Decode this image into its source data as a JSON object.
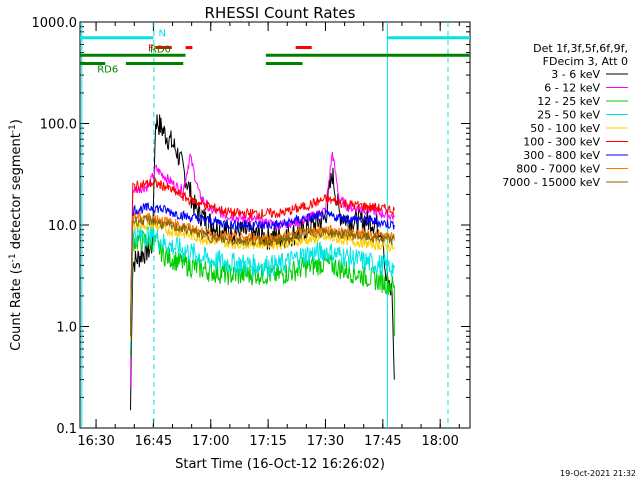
{
  "chart_data": {
    "type": "line",
    "title": "RHESSI Count Rates",
    "xlabel": "Start Time (16-Oct-12 16:26:02)",
    "ylabel_main": "Count Rate (s",
    "ylabel_sup1": "-1",
    "ylabel_mid": " detector segment",
    "ylabel_sup2": "-1",
    "ylabel_end": ")",
    "yscale": "log",
    "ylim": [
      0.1,
      1000
    ],
    "xlim_minutes": [
      16.43,
      18.13
    ],
    "x_ticks": [
      {
        "label": "16:30",
        "t": 16.5
      },
      {
        "label": "16:45",
        "t": 16.75
      },
      {
        "label": "17:00",
        "t": 17.0
      },
      {
        "label": "17:15",
        "t": 17.25
      },
      {
        "label": "17:30",
        "t": 17.5
      },
      {
        "label": "17:45",
        "t": 17.75
      },
      {
        "label": "18:00",
        "t": 18.0
      }
    ],
    "y_ticks": [
      {
        "label": "0.1",
        "v": 0.1
      },
      {
        "label": "1.0",
        "v": 1.0
      },
      {
        "label": "10.0",
        "v": 10.0
      },
      {
        "label": "100.0",
        "v": 100.0
      },
      {
        "label": "1000.0",
        "v": 1000.0
      }
    ],
    "legend_header": [
      "Det 1f,3f,5f,6f,9f,",
      "FDecim 3, Att 0"
    ],
    "series": [
      {
        "name": "3 - 6 keV",
        "color": "#000000",
        "points": [
          [
            16.65,
            0.15
          ],
          [
            16.66,
            4.2
          ],
          [
            16.7,
            5.2
          ],
          [
            16.745,
            6
          ],
          [
            16.76,
            110
          ],
          [
            16.8,
            80
          ],
          [
            16.85,
            55
          ],
          [
            16.88,
            35
          ],
          [
            16.9,
            25
          ],
          [
            16.93,
            15
          ],
          [
            16.98,
            11
          ],
          [
            17.05,
            9
          ],
          [
            17.15,
            8.5
          ],
          [
            17.25,
            7.5
          ],
          [
            17.35,
            8
          ],
          [
            17.45,
            10
          ],
          [
            17.5,
            12
          ],
          [
            17.53,
            32
          ],
          [
            17.56,
            13
          ],
          [
            17.6,
            11
          ],
          [
            17.7,
            11
          ],
          [
            17.75,
            9
          ],
          [
            17.76,
            3
          ],
          [
            17.79,
            2.2
          ],
          [
            17.8,
            0.3
          ]
        ]
      },
      {
        "name": "6 - 12 keV",
        "color": "#ff00ff",
        "points": [
          [
            16.65,
            0.25
          ],
          [
            16.66,
            22
          ],
          [
            16.73,
            24
          ],
          [
            16.76,
            36
          ],
          [
            16.8,
            30
          ],
          [
            16.85,
            24
          ],
          [
            16.88,
            22
          ],
          [
            16.91,
            48
          ],
          [
            16.95,
            20
          ],
          [
            17.0,
            14
          ],
          [
            17.1,
            12
          ],
          [
            17.2,
            11
          ],
          [
            17.3,
            10
          ],
          [
            17.4,
            11
          ],
          [
            17.5,
            14
          ],
          [
            17.53,
            52
          ],
          [
            17.56,
            18
          ],
          [
            17.6,
            15
          ],
          [
            17.7,
            14
          ],
          [
            17.8,
            12
          ]
        ]
      },
      {
        "name": "12 - 25 keV",
        "color": "#00cc00",
        "points": [
          [
            16.65,
            0.5
          ],
          [
            16.66,
            7
          ],
          [
            16.75,
            7
          ],
          [
            16.8,
            5
          ],
          [
            16.9,
            4
          ],
          [
            17.0,
            3.5
          ],
          [
            17.1,
            3.2
          ],
          [
            17.2,
            3.3
          ],
          [
            17.3,
            3.2
          ],
          [
            17.4,
            3.8
          ],
          [
            17.5,
            4.2
          ],
          [
            17.6,
            3.5
          ],
          [
            17.7,
            3
          ],
          [
            17.8,
            2.5
          ],
          [
            17.8,
            0.8
          ]
        ]
      },
      {
        "name": "25 - 50 keV",
        "color": "#00e5e5",
        "points": [
          [
            16.65,
            0.6
          ],
          [
            16.66,
            8
          ],
          [
            16.75,
            8
          ],
          [
            16.8,
            6.5
          ],
          [
            16.9,
            5.5
          ],
          [
            17.0,
            4.5
          ],
          [
            17.1,
            4.2
          ],
          [
            17.2,
            4
          ],
          [
            17.3,
            4
          ],
          [
            17.4,
            5
          ],
          [
            17.5,
            5.5
          ],
          [
            17.6,
            4.8
          ],
          [
            17.7,
            4.2
          ],
          [
            17.8,
            3.8
          ]
        ]
      },
      {
        "name": "50 - 100 keV",
        "color": "#ffcc00",
        "points": [
          [
            16.65,
            0.7
          ],
          [
            16.66,
            10
          ],
          [
            16.75,
            10
          ],
          [
            16.8,
            9
          ],
          [
            16.9,
            8
          ],
          [
            17.0,
            7
          ],
          [
            17.1,
            6.5
          ],
          [
            17.2,
            6.5
          ],
          [
            17.3,
            6.5
          ],
          [
            17.4,
            7
          ],
          [
            17.5,
            7.5
          ],
          [
            17.6,
            7
          ],
          [
            17.7,
            6.5
          ],
          [
            17.8,
            6
          ]
        ]
      },
      {
        "name": "100 - 300 keV",
        "color": "#ff0000",
        "points": [
          [
            16.65,
            1
          ],
          [
            16.66,
            24
          ],
          [
            16.75,
            26
          ],
          [
            16.8,
            24
          ],
          [
            16.9,
            18
          ],
          [
            17.0,
            15
          ],
          [
            17.1,
            13
          ],
          [
            17.2,
            13
          ],
          [
            17.3,
            13
          ],
          [
            17.4,
            15
          ],
          [
            17.5,
            18
          ],
          [
            17.6,
            16
          ],
          [
            17.7,
            15
          ],
          [
            17.8,
            14
          ]
        ]
      },
      {
        "name": "300 - 800 keV",
        "color": "#0000ff",
        "points": [
          [
            16.65,
            1
          ],
          [
            16.66,
            14
          ],
          [
            16.75,
            15
          ],
          [
            16.8,
            14
          ],
          [
            16.9,
            12
          ],
          [
            17.0,
            11
          ],
          [
            17.1,
            10
          ],
          [
            17.2,
            10
          ],
          [
            17.3,
            10
          ],
          [
            17.4,
            11.5
          ],
          [
            17.5,
            12.5
          ],
          [
            17.6,
            11.5
          ],
          [
            17.7,
            11
          ],
          [
            17.8,
            10
          ]
        ]
      },
      {
        "name": "800 - 7000 keV",
        "color": "#ff7700",
        "points": [
          [
            16.65,
            0.9
          ],
          [
            16.66,
            12
          ],
          [
            16.75,
            12
          ],
          [
            16.8,
            11
          ],
          [
            16.9,
            9.5
          ],
          [
            17.0,
            8
          ],
          [
            17.1,
            7.5
          ],
          [
            17.2,
            7.5
          ],
          [
            17.3,
            7.5
          ],
          [
            17.4,
            8.5
          ],
          [
            17.5,
            9
          ],
          [
            17.6,
            8.5
          ],
          [
            17.7,
            8
          ],
          [
            17.8,
            7.5
          ]
        ]
      },
      {
        "name": "7000 - 15000 keV",
        "color": "#886600",
        "points": [
          [
            16.65,
            0.8
          ],
          [
            16.66,
            11
          ],
          [
            16.75,
            11
          ],
          [
            16.8,
            10
          ],
          [
            16.9,
            9
          ],
          [
            17.0,
            7.5
          ],
          [
            17.1,
            7
          ],
          [
            17.2,
            7
          ],
          [
            17.3,
            7
          ],
          [
            17.4,
            8
          ],
          [
            17.5,
            8.5
          ],
          [
            17.6,
            8
          ],
          [
            17.7,
            7.5
          ],
          [
            17.8,
            7
          ]
        ]
      }
    ],
    "flags": [
      {
        "label": "N",
        "color": "#00e5e5",
        "value": 700,
        "segments": [
          [
            16.43,
            16.75
          ],
          [
            17.77,
            18.13
          ]
        ]
      },
      {
        "label": "F",
        "color": "#ff0000",
        "value": 560,
        "segments": [
          [
            16.76,
            16.83
          ],
          [
            16.89,
            16.92
          ],
          [
            17.37,
            17.44
          ]
        ]
      },
      {
        "label": "RD0",
        "color": "#008000",
        "value": 470,
        "segments": [
          [
            16.43,
            16.89
          ],
          [
            17.24,
            18.13
          ]
        ]
      },
      {
        "label": "RD6",
        "color": "#008000",
        "value": 390,
        "segments": [
          [
            16.43,
            16.54
          ],
          [
            16.63,
            16.88
          ],
          [
            17.24,
            17.4
          ]
        ]
      }
    ],
    "vlines": [
      {
        "t": 16.438,
        "color": "#00e5e5",
        "style": "solid"
      },
      {
        "t": 16.752,
        "color": "#00e5e5",
        "style": "dashed"
      },
      {
        "t": 17.77,
        "color": "#00e5e5",
        "style": "solid"
      },
      {
        "t": 18.034,
        "color": "#00e5e5",
        "style": "dashed"
      }
    ],
    "timestamp": "19-Oct-2021 21:32"
  }
}
